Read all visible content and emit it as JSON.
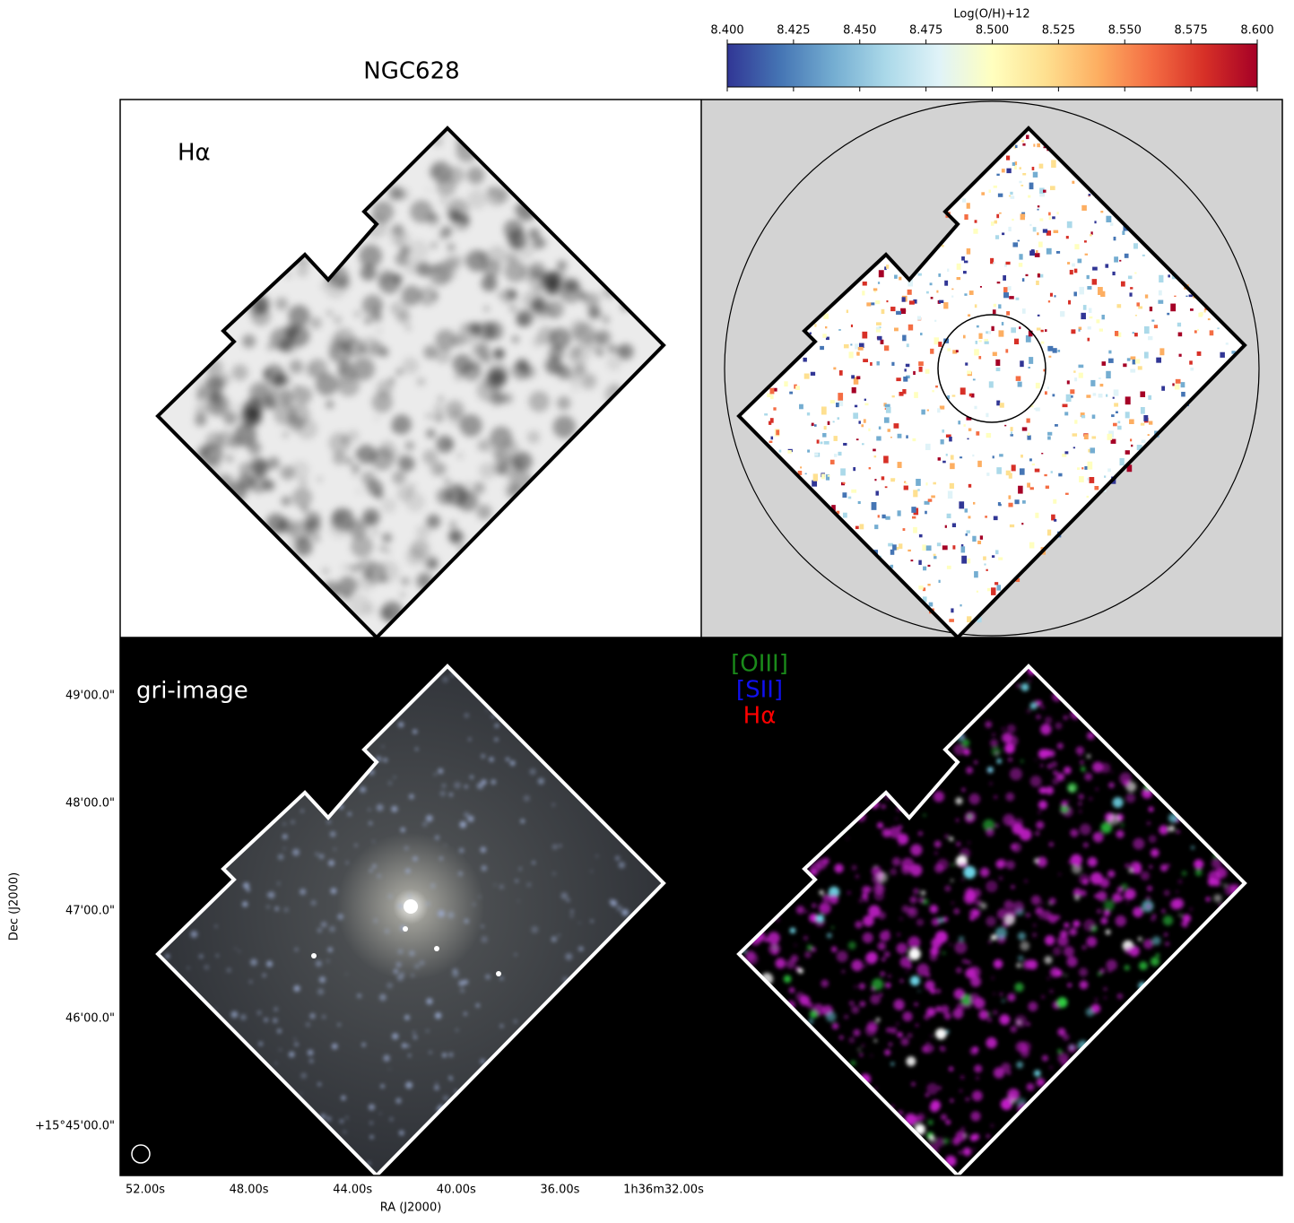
{
  "title": "NGC628",
  "colorbar": {
    "label": "Log(O/H)+12",
    "lim": [
      8.4,
      8.6
    ],
    "ticks": [
      {
        "value": 8.4,
        "label": "8.400"
      },
      {
        "value": 8.425,
        "label": "8.425"
      },
      {
        "value": 8.45,
        "label": "8.450"
      },
      {
        "value": 8.475,
        "label": "8.475"
      },
      {
        "value": 8.5,
        "label": "8.500"
      },
      {
        "value": 8.525,
        "label": "8.525"
      },
      {
        "value": 8.55,
        "label": "8.550"
      },
      {
        "value": 8.575,
        "label": "8.575"
      },
      {
        "value": 8.6,
        "label": "8.600"
      }
    ]
  },
  "panels": {
    "halpha_label": "Hα",
    "gri_label": "gri-image",
    "rgb_legend": [
      "[OIII]",
      "[SII]",
      "Hα"
    ]
  },
  "axes": {
    "x_label": "RA (J2000)",
    "y_label": "Dec (J2000)",
    "ra_ticks": [
      "52.00s",
      "48.00s",
      "44.00s",
      "40.00s",
      "36.00s",
      "1h36m32.00s"
    ],
    "dec_ticks": [
      "49'00.0\"",
      "48'00.0\"",
      "47'00.0\"",
      "46'00.0\"",
      "+15°45'00.0\""
    ]
  }
}
